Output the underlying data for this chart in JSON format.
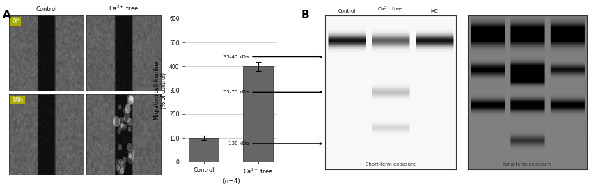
{
  "panel_A_label": "A",
  "panel_B_label": "B",
  "microscopy_labels_top": [
    "Control",
    "Ca²⁺ free"
  ],
  "time_labels": [
    "0h",
    "18h"
  ],
  "bar_categories": [
    "Control",
    "Ca²⁺ free"
  ],
  "bar_values": [
    100,
    400
  ],
  "bar_errors": [
    8,
    18
  ],
  "bar_color": "#666666",
  "ylabel": "Migration cell Number\n(% of control)",
  "ylim": [
    0,
    600
  ],
  "yticks": [
    0,
    100,
    200,
    300,
    400,
    500,
    600
  ],
  "n_label": "(n=4)",
  "blot_labels_top": [
    "Control",
    "Ca²⁺ free",
    "MC"
  ],
  "kda_labels": [
    "130 kDa",
    "55-70 kDa",
    "35-40 kDa"
  ],
  "short_exposure_label": "Short-term exposure",
  "long_exposure_label": "long-term exposure",
  "bg_color": "#ffffff",
  "time_label_bg": "#aaaa00",
  "time_label_color": "#ffffff",
  "fig_width": 8.56,
  "fig_height": 2.7,
  "dpi": 100
}
